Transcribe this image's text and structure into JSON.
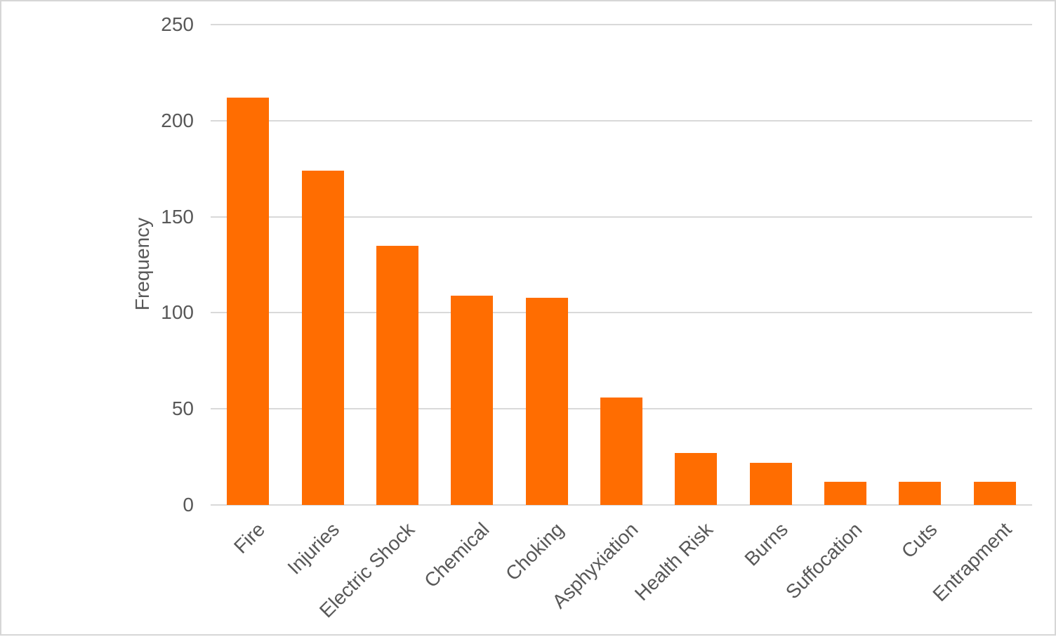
{
  "chart_data": {
    "type": "bar",
    "title": "",
    "xlabel": "",
    "ylabel": "Frequency",
    "categories": [
      "Fire",
      "Injuries",
      "Electric Shock",
      "Chemical",
      "Choking",
      "Asphyxiation",
      "Health Risk",
      "Burns",
      "Suffocation",
      "Cuts",
      "Entrapment"
    ],
    "values": [
      212,
      174,
      135,
      109,
      108,
      56,
      27,
      22,
      12,
      12,
      12
    ],
    "ylim": [
      0,
      250
    ],
    "yticks": [
      0,
      50,
      100,
      150,
      200,
      250
    ],
    "grid": true,
    "legend": "none",
    "bar_color": "#ff6d01",
    "gridline_color": "#d9d9d9",
    "axis_text_color": "#585858",
    "background_color": "#ffffff",
    "border_color": "#d6d6d6"
  }
}
